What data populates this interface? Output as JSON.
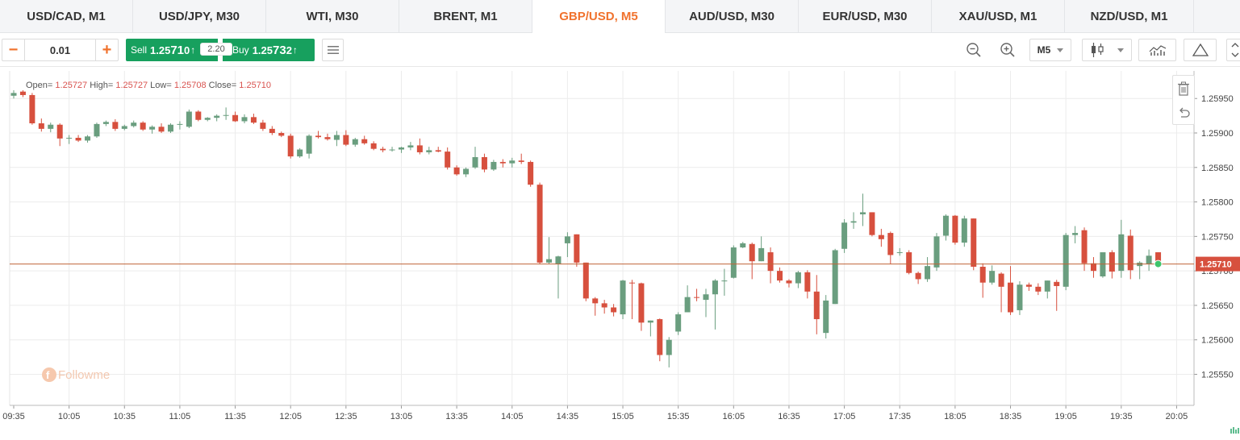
{
  "tabs": [
    {
      "label": "USD/CAD, M1",
      "active": false
    },
    {
      "label": "USD/JPY, M30",
      "active": false
    },
    {
      "label": "WTI, M30",
      "active": false
    },
    {
      "label": "BRENT, M1",
      "active": false
    },
    {
      "label": "GBP/USD, M5",
      "active": true
    },
    {
      "label": "AUD/USD, M30",
      "active": false
    },
    {
      "label": "EUR/USD, M30",
      "active": false
    },
    {
      "label": "XAU/USD, M1",
      "active": false
    },
    {
      "label": "NZD/USD, M1",
      "active": false
    }
  ],
  "toolbar": {
    "lot_minus": "−",
    "lot_value": "0.01",
    "lot_plus": "+",
    "sell_label": "Sell",
    "sell_price_prefix": "1.25",
    "sell_price_big": "71",
    "sell_price_suffix": "0",
    "spread": "2.20",
    "buy_label": "Buy",
    "buy_price_prefix": "1.25",
    "buy_price_big": "73",
    "buy_price_suffix": "2",
    "timeframe": "M5"
  },
  "ohlc": {
    "open_label": "Open=",
    "open": "1.25727",
    "high_label": "High=",
    "high": "1.25727",
    "low_label": "Low=",
    "low": "1.25708",
    "close_label": "Close=",
    "close": "1.25710"
  },
  "watermark": "Followme",
  "colors": {
    "up": "#6a9e7f",
    "down": "#d7503e",
    "accent": "#f0722d",
    "buy_sell": "#17a05e",
    "price_line": "#c0643a"
  },
  "chart_data": {
    "type": "candlestick",
    "symbol": "GBP/USD",
    "timeframe": "M5",
    "current_price": "1.25710",
    "ylim": [
      1.2551,
      1.26
    ],
    "y_ticks": [
      "1.25950",
      "1.25900",
      "1.25850",
      "1.25800",
      "1.25750",
      "1.25700",
      "1.25650",
      "1.25600",
      "1.25550"
    ],
    "x_ticks": [
      "09:35",
      "10:05",
      "10:35",
      "11:05",
      "11:35",
      "12:05",
      "12:35",
      "13:05",
      "13:35",
      "14:05",
      "14:35",
      "15:05",
      "15:35",
      "16:05",
      "16:35",
      "17:05",
      "17:35",
      "18:05",
      "18:35",
      "19:05",
      "19:35",
      "20:05"
    ],
    "start_time": "09:35",
    "interval_minutes": 5,
    "candles": [
      [
        1.25954,
        1.25962,
        1.2595,
        1.25958
      ],
      [
        1.2596,
        1.25962,
        1.25952,
        1.25955
      ],
      [
        1.25955,
        1.25958,
        1.25912,
        1.25914
      ],
      [
        1.25914,
        1.25921,
        1.25902,
        1.25906
      ],
      [
        1.25906,
        1.25915,
        1.25901,
        1.25912
      ],
      [
        1.25912,
        1.25914,
        1.25881,
        1.25892
      ],
      [
        1.25892,
        1.25897,
        1.25884,
        1.25893
      ],
      [
        1.25893,
        1.25897,
        1.25887,
        1.25889
      ],
      [
        1.25889,
        1.25897,
        1.25886,
        1.25895
      ],
      [
        1.25895,
        1.25915,
        1.25893,
        1.25913
      ],
      [
        1.25913,
        1.25918,
        1.2591,
        1.25916
      ],
      [
        1.25916,
        1.2592,
        1.25903,
        1.25906
      ],
      [
        1.25906,
        1.25912,
        1.25904,
        1.2591
      ],
      [
        1.2591,
        1.25918,
        1.25908,
        1.25915
      ],
      [
        1.25915,
        1.25917,
        1.25903,
        1.25905
      ],
      [
        1.25905,
        1.25911,
        1.25899,
        1.25909
      ],
      [
        1.25909,
        1.25914,
        1.259,
        1.25902
      ],
      [
        1.25902,
        1.25914,
        1.259,
        1.25912
      ],
      [
        1.25912,
        1.25917,
        1.25905,
        1.25913
      ],
      [
        1.25909,
        1.25934,
        1.25907,
        1.25931
      ],
      [
        1.25931,
        1.25933,
        1.25917,
        1.25919
      ],
      [
        1.25919,
        1.25923,
        1.25917,
        1.25922
      ],
      [
        1.25922,
        1.25927,
        1.25917,
        1.25925
      ],
      [
        1.25925,
        1.25937,
        1.25919,
        1.25926
      ],
      [
        1.25926,
        1.25931,
        1.25916,
        1.25917
      ],
      [
        1.25917,
        1.25927,
        1.25914,
        1.25923
      ],
      [
        1.25923,
        1.25928,
        1.25913,
        1.25915
      ],
      [
        1.25915,
        1.25919,
        1.25903,
        1.25906
      ],
      [
        1.25906,
        1.2591,
        1.25897,
        1.259
      ],
      [
        1.259,
        1.25902,
        1.25894,
        1.25896
      ],
      [
        1.25896,
        1.25899,
        1.25863,
        1.25866
      ],
      [
        1.25866,
        1.25878,
        1.25864,
        1.25876
      ],
      [
        1.2587,
        1.25898,
        1.25863,
        1.25896
      ],
      [
        1.25896,
        1.25903,
        1.25892,
        1.25894
      ],
      [
        1.25894,
        1.25899,
        1.25889,
        1.25891
      ],
      [
        1.2589,
        1.25903,
        1.25881,
        1.25897
      ],
      [
        1.25897,
        1.25904,
        1.25881,
        1.25883
      ],
      [
        1.25883,
        1.25893,
        1.2588,
        1.25891
      ],
      [
        1.25891,
        1.25896,
        1.25883,
        1.25885
      ],
      [
        1.25885,
        1.25888,
        1.25875,
        1.25877
      ],
      [
        1.25877,
        1.2588,
        1.25872,
        1.25875
      ],
      [
        1.25875,
        1.2588,
        1.25873,
        1.25876
      ],
      [
        1.25876,
        1.2588,
        1.25871,
        1.25879
      ],
      [
        1.25879,
        1.25887,
        1.25875,
        1.25882
      ],
      [
        1.25882,
        1.25892,
        1.25869,
        1.25872
      ],
      [
        1.25872,
        1.2588,
        1.25869,
        1.25875
      ],
      [
        1.25875,
        1.2588,
        1.25872,
        1.25873
      ],
      [
        1.25873,
        1.25879,
        1.25847,
        1.2585
      ],
      [
        1.2585,
        1.25853,
        1.25838,
        1.2584
      ],
      [
        1.2584,
        1.2585,
        1.25836,
        1.25848
      ],
      [
        1.2585,
        1.2588,
        1.25848,
        1.25865
      ],
      [
        1.25865,
        1.2587,
        1.25843,
        1.25847
      ],
      [
        1.25847,
        1.25861,
        1.25845,
        1.25858
      ],
      [
        1.25858,
        1.25862,
        1.2585,
        1.25856
      ],
      [
        1.25856,
        1.25864,
        1.2585,
        1.2586
      ],
      [
        1.2586,
        1.2587,
        1.25855,
        1.25858
      ],
      [
        1.25858,
        1.2586,
        1.25822,
        1.25825
      ],
      [
        1.25825,
        1.25828,
        1.2571,
        1.25712
      ],
      [
        1.25712,
        1.25749,
        1.2571,
        1.25717
      ],
      [
        1.2571,
        1.25722,
        1.2566,
        1.25721
      ],
      [
        1.2574,
        1.25756,
        1.2572,
        1.2575
      ],
      [
        1.25753,
        1.25753,
        1.25706,
        1.25712
      ],
      [
        1.25712,
        1.25712,
        1.25656,
        1.2566
      ],
      [
        1.2566,
        1.25662,
        1.25635,
        1.25653
      ],
      [
        1.25653,
        1.25658,
        1.25638,
        1.25647
      ],
      [
        1.25647,
        1.25652,
        1.25634,
        1.2564
      ],
      [
        1.25637,
        1.25687,
        1.2563,
        1.25686
      ],
      [
        1.25683,
        1.25687,
        1.2563,
        1.25682
      ],
      [
        1.25682,
        1.25683,
        1.25613,
        1.25625
      ],
      [
        1.25625,
        1.25628,
        1.25605,
        1.25628
      ],
      [
        1.2563,
        1.25631,
        1.25569,
        1.25578
      ],
      [
        1.25578,
        1.25604,
        1.2556,
        1.256
      ],
      [
        1.25612,
        1.2564,
        1.25607,
        1.25637
      ],
      [
        1.2564,
        1.25679,
        1.2564,
        1.25662
      ],
      [
        1.25662,
        1.25674,
        1.25656,
        1.25661
      ],
      [
        1.25658,
        1.25674,
        1.25633,
        1.25666
      ],
      [
        1.25666,
        1.25688,
        1.25615,
        1.25686
      ],
      [
        1.25686,
        1.25703,
        1.25664,
        1.25686
      ],
      [
        1.2569,
        1.25737,
        1.25689,
        1.25734
      ],
      [
        1.25734,
        1.25742,
        1.25733,
        1.2574
      ],
      [
        1.25739,
        1.25741,
        1.25688,
        1.25714
      ],
      [
        1.25714,
        1.2575,
        1.25714,
        1.25733
      ],
      [
        1.25727,
        1.25734,
        1.25682,
        1.257
      ],
      [
        1.257,
        1.25705,
        1.25683,
        1.25686
      ],
      [
        1.25686,
        1.25688,
        1.25676,
        1.25682
      ],
      [
        1.25682,
        1.257,
        1.25675,
        1.25698
      ],
      [
        1.25698,
        1.25701,
        1.2566,
        1.2567
      ],
      [
        1.2567,
        1.25694,
        1.25608,
        1.2563
      ],
      [
        1.2561,
        1.25665,
        1.25602,
        1.25657
      ],
      [
        1.25652,
        1.25732,
        1.25652,
        1.2573
      ],
      [
        1.25732,
        1.25775,
        1.25726,
        1.2577
      ],
      [
        1.2577,
        1.25785,
        1.25761,
        1.25772
      ],
      [
        1.25782,
        1.25812,
        1.25765,
        1.25785
      ],
      [
        1.25785,
        1.25785,
        1.2575,
        1.25752
      ],
      [
        1.25752,
        1.25761,
        1.25735,
        1.25746
      ],
      [
        1.25755,
        1.25757,
        1.2571,
        1.25723
      ],
      [
        1.25727,
        1.25733,
        1.25722,
        1.25727
      ],
      [
        1.25727,
        1.2573,
        1.25695,
        1.25697
      ],
      [
        1.25697,
        1.25699,
        1.25681,
        1.25688
      ],
      [
        1.25688,
        1.2572,
        1.25684,
        1.25707
      ],
      [
        1.25705,
        1.25755,
        1.257,
        1.2575
      ],
      [
        1.25751,
        1.25782,
        1.25744,
        1.2578
      ],
      [
        1.2578,
        1.25781,
        1.25738,
        1.25741
      ],
      [
        1.25741,
        1.2578,
        1.25735,
        1.25776
      ],
      [
        1.25776,
        1.25776,
        1.25701,
        1.25706
      ],
      [
        1.25706,
        1.25711,
        1.25661,
        1.25683
      ],
      [
        1.25683,
        1.25708,
        1.2568,
        1.257
      ],
      [
        1.25696,
        1.25698,
        1.2564,
        1.25677
      ],
      [
        1.25683,
        1.25707,
        1.25636,
        1.2564
      ],
      [
        1.25643,
        1.25685,
        1.25636,
        1.2568
      ],
      [
        1.2568,
        1.25683,
        1.25671,
        1.25677
      ],
      [
        1.25677,
        1.25682,
        1.25665,
        1.2567
      ],
      [
        1.2567,
        1.25686,
        1.2566,
        1.25686
      ],
      [
        1.25684,
        1.25687,
        1.25642,
        1.25678
      ],
      [
        1.25677,
        1.25755,
        1.25672,
        1.25752
      ],
      [
        1.25752,
        1.25765,
        1.2574,
        1.25755
      ],
      [
        1.25759,
        1.25763,
        1.257,
        1.25711
      ],
      [
        1.25711,
        1.2572,
        1.2569,
        1.257
      ],
      [
        1.25692,
        1.25726,
        1.2569,
        1.25727
      ],
      [
        1.25727,
        1.2573,
        1.25689,
        1.25699
      ],
      [
        1.257,
        1.25774,
        1.2569,
        1.25753
      ],
      [
        1.25751,
        1.2576,
        1.25688,
        1.25701
      ],
      [
        1.25707,
        1.25714,
        1.25688,
        1.25712
      ],
      [
        1.2571,
        1.25731,
        1.257,
        1.25722
      ],
      [
        1.25727,
        1.25727,
        1.25708,
        1.2571
      ]
    ]
  }
}
